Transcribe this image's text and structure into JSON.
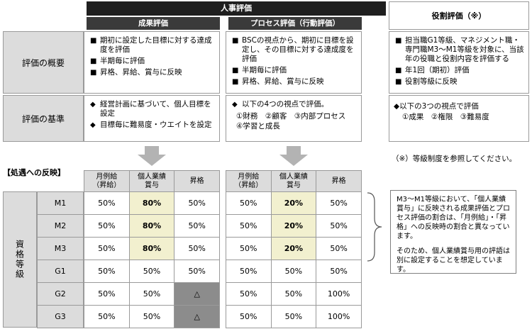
{
  "header": {
    "main_title": "人事評価",
    "col1_title": "成果評価",
    "col2_title": "プロセス評価（行動評価）",
    "col3_title": "役割評価（※）"
  },
  "rows": {
    "overview_label": "評価の概要",
    "criteria_label": "評価の基準"
  },
  "overview": {
    "col1": [
      {
        "mark": "■",
        "text": "期初に設定した目標に対する達成度を評価"
      },
      {
        "mark": "■",
        "text": "半期毎に評価"
      },
      {
        "mark": "■",
        "text": "昇格、昇給、賞与に反映"
      }
    ],
    "col2": [
      {
        "mark": "■",
        "text": "BSCの視点から、期初に目標を設定し、その目標に対する達成度を評価"
      },
      {
        "mark": "■",
        "text": "半期毎に評価"
      },
      {
        "mark": "■",
        "text": "昇格、昇給、賞与に反映"
      }
    ],
    "col3": [
      {
        "mark": "■",
        "text": "担当職G1等級、マネジメント職・専門職M3～M1等級を対象に、当該年の役職と役割内容を評価する"
      },
      {
        "mark": "■",
        "text": "年1回（期初）評価"
      },
      {
        "mark": "■",
        "text": "役割等級に反映"
      }
    ]
  },
  "criteria": {
    "col1": [
      {
        "mark": "◆",
        "text": "経営計画に基づいて、個人目標を設定"
      },
      {
        "mark": "◆",
        "text": "目標毎に難易度・ウエイトを設定"
      }
    ],
    "col2_intro": {
      "mark": "◆",
      "text": "以下の4つの視点で評価。"
    },
    "col2_sub1": "①財務　②顧客　③内部プロセス",
    "col2_sub2": "④学習と成長",
    "col3_intro": "◆以下の3つの視点で評価",
    "col3_sub": "①成果　②権限　③難易度"
  },
  "footnote": "（※）等級制度を参照してください。",
  "treatment_title": "【処遇への反映】",
  "grade_label": "資格等級",
  "table_headers": {
    "monthly": "月例給（昇給）",
    "monthly_l1": "月例給",
    "monthly_l2": "（昇給）",
    "bonus_l1": "個人業績",
    "bonus_l2": "賞与",
    "promotion": "昇格"
  },
  "grades": [
    "M1",
    "M2",
    "M3",
    "G1",
    "G2",
    "G3"
  ],
  "table1": [
    [
      "50%",
      "80%",
      "50%"
    ],
    [
      "50%",
      "80%",
      "50%"
    ],
    [
      "50%",
      "80%",
      "50%"
    ],
    [
      "50%",
      "50%",
      "50%"
    ],
    [
      "50%",
      "50%",
      "△"
    ],
    [
      "50%",
      "50%",
      "△"
    ]
  ],
  "table2": [
    [
      "50%",
      "20%",
      "50%"
    ],
    [
      "50%",
      "20%",
      "50%"
    ],
    [
      "50%",
      "20%",
      "50%"
    ],
    [
      "50%",
      "50%",
      "50%"
    ],
    [
      "50%",
      "50%",
      "100%"
    ],
    [
      "50%",
      "50%",
      "100%"
    ]
  ],
  "note": {
    "para1": "M3～M1等級において、「個人業績賞与」に反映される成果評価とプロセス評価の割合は、「月例給」・「昇格」への反映時の割合と異なっています。",
    "para2": "そのため、個人業績賞与用の評語は別に設定することを想定しています。"
  },
  "colors": {
    "header_dark": "#1f1f1f",
    "label_gray": "#dcdcdc",
    "highlight_yellow": "#f2f0cf",
    "triangle_gray": "#8c8c8c"
  }
}
